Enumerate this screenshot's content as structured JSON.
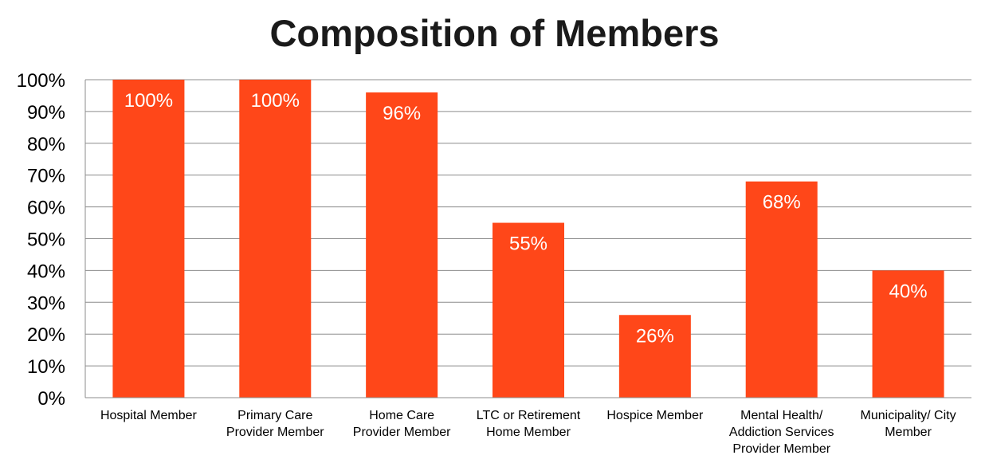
{
  "chart_data": {
    "type": "bar",
    "title": "Composition of Members",
    "xlabel": "",
    "ylabel": "",
    "categories": [
      "Hospital Member",
      "Primary Care Provider Member",
      "Home Care Provider Member",
      "LTC or Retirement Home Member",
      "Hospice Member",
      "Mental Health/ Addiction Services Provider Member",
      "Municipality/ City Member"
    ],
    "category_lines": [
      [
        "Hospital Member"
      ],
      [
        "Primary Care",
        "Provider Member"
      ],
      [
        "Home Care",
        "Provider Member"
      ],
      [
        "LTC or Retirement",
        "Home Member"
      ],
      [
        "Hospice Member"
      ],
      [
        "Mental Health/",
        "Addiction Services",
        "Provider Member"
      ],
      [
        "Municipality/ City",
        "Member"
      ]
    ],
    "values": [
      100,
      100,
      96,
      55,
      26,
      68,
      40
    ],
    "data_labels": [
      "100%",
      "100%",
      "96%",
      "55%",
      "26%",
      "68%",
      "40%"
    ],
    "y_ticks": [
      "0%",
      "10%",
      "20%",
      "30%",
      "40%",
      "50%",
      "60%",
      "70%",
      "80%",
      "90%",
      "100%"
    ],
    "ylim": [
      0,
      100
    ],
    "grid": true,
    "legend": "none",
    "colors": {
      "bar": "#FF4719",
      "grid": "#8c8c8c",
      "axis": "#8c8c8c"
    }
  }
}
